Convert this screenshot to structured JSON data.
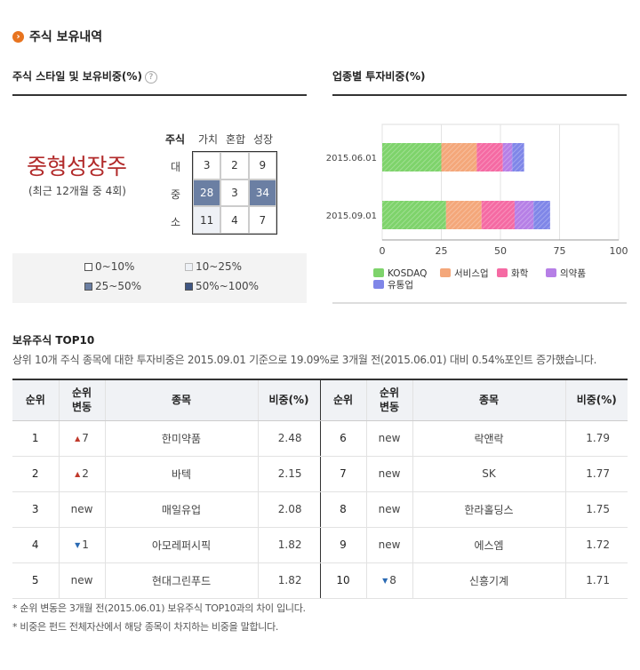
{
  "section": {
    "title": "주식 보유내역",
    "icon": "arrow-right-icon"
  },
  "style_box": {
    "heading": "주식 스타일 및 보유비중(%)",
    "style_name": "중형성장주",
    "style_sub": "(최근 12개월 중 4회)",
    "col_header_main": "주식",
    "cols": [
      "가치",
      "혼합",
      "성장"
    ],
    "rows": [
      "대",
      "중",
      "소"
    ],
    "matrix": [
      [
        3,
        2,
        9
      ],
      [
        28,
        3,
        34
      ],
      [
        11,
        4,
        7
      ]
    ],
    "legend": [
      "0~10%",
      "10~25%",
      "25~50%",
      "50%~100%"
    ],
    "legend_colors": [
      "#ffffff",
      "#eef1f6",
      "#6b7fa3",
      "#3f5682"
    ]
  },
  "chart_data": {
    "type": "bar",
    "orientation": "horizontal",
    "stacked": true,
    "title": "업종별 투자비중(%)",
    "categories": [
      "2015.06.01",
      "2015.09.01"
    ],
    "series": [
      {
        "name": "KOSDAQ",
        "color": "#7ed36b",
        "values": [
          25,
          27
        ]
      },
      {
        "name": "서비스업",
        "color": "#f4a77a",
        "values": [
          15,
          15
        ]
      },
      {
        "name": "화학",
        "color": "#f56aa3",
        "values": [
          11,
          14
        ]
      },
      {
        "name": "의약품",
        "color": "#b67fe6",
        "values": [
          4,
          8
        ]
      },
      {
        "name": "유통업",
        "color": "#7f86e8",
        "values": [
          5,
          7
        ]
      }
    ],
    "xlim": [
      0,
      100
    ],
    "xticks": [
      0,
      25,
      50,
      75,
      100
    ],
    "grid": true,
    "legend_position": "bottom"
  },
  "top10": {
    "title": "보유주식 TOP10",
    "desc": "상위 10개 주식 종목에 대한 투자비중은 2015.09.01 기준으로 19.09%로 3개월 전(2015.06.01) 대비 0.54%포인트 증가했습니다.",
    "headers": {
      "rank": "순위",
      "change_1": "순위",
      "change_2": "변동",
      "name": "종목",
      "weight": "비중(%)"
    },
    "rows": [
      [
        {
          "rank": "1",
          "change": "7",
          "dir": "up",
          "name": "한미약품",
          "weight": "2.48"
        },
        {
          "rank": "6",
          "change": "new",
          "dir": "new",
          "name": "락앤락",
          "weight": "1.79"
        }
      ],
      [
        {
          "rank": "2",
          "change": "2",
          "dir": "up",
          "name": "바텍",
          "weight": "2.15"
        },
        {
          "rank": "7",
          "change": "new",
          "dir": "new",
          "name": "SK",
          "weight": "1.77"
        }
      ],
      [
        {
          "rank": "3",
          "change": "new",
          "dir": "new",
          "name": "매일유업",
          "weight": "2.08"
        },
        {
          "rank": "8",
          "change": "new",
          "dir": "new",
          "name": "한라홀딩스",
          "weight": "1.75"
        }
      ],
      [
        {
          "rank": "4",
          "change": "1",
          "dir": "down",
          "name": "아모레퍼시픽",
          "weight": "1.82"
        },
        {
          "rank": "9",
          "change": "new",
          "dir": "new",
          "name": "에스엠",
          "weight": "1.72"
        }
      ],
      [
        {
          "rank": "5",
          "change": "new",
          "dir": "new",
          "name": "현대그린푸드",
          "weight": "1.82"
        },
        {
          "rank": "10",
          "change": "8",
          "dir": "down",
          "name": "신흥기계",
          "weight": "1.71"
        }
      ]
    ]
  },
  "notes": [
    "* 순위 변동은 3개월 전(2015.06.01) 보유주식 TOP10과의 차이 입니다.",
    "* 비중은 펀드 전체자산에서 해당 종목이 차지하는 비중을 말합니다."
  ]
}
